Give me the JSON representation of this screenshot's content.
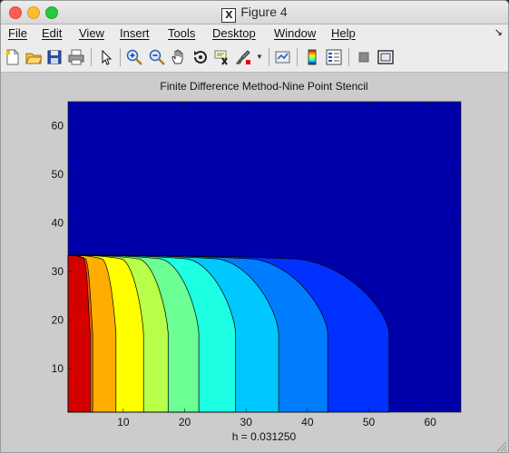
{
  "window": {
    "title": "Figure 4",
    "title_icon": "X"
  },
  "menu": {
    "items": [
      "File",
      "Edit",
      "View",
      "Insert",
      "Tools",
      "Desktop",
      "Window",
      "Help"
    ],
    "overflow_icon": "arrow-icon"
  },
  "toolbar": {
    "buttons": [
      "new-figure-icon",
      "open-file-icon",
      "save-icon",
      "print-icon",
      "edit-plot-icon",
      "zoom-in-icon",
      "zoom-out-icon",
      "pan-icon",
      "rotate-3d-icon",
      "data-cursor-icon",
      "brush-icon",
      "link-icon",
      "colorbar-icon",
      "legend-icon",
      "hide-plot-tools-icon",
      "show-plot-tools-icon"
    ]
  },
  "chart_data": {
    "type": "contour",
    "title": "Finite Difference Method-Nine Point Stencil",
    "xlabel": "h = 0.031250",
    "ylabel": "",
    "xlim": [
      1,
      65
    ],
    "ylim": [
      1,
      65
    ],
    "xticks": [
      "10",
      "20",
      "30",
      "40",
      "50",
      "60"
    ],
    "yticks": [
      "10",
      "20",
      "30",
      "40",
      "50",
      "60"
    ],
    "grid": false,
    "colormap": "jet",
    "colors": [
      "#0000ab",
      "#0031ff",
      "#007dff",
      "#00c8ff",
      "#1cffe3",
      "#6bff94",
      "#b7ff48",
      "#ffff00",
      "#ffad00",
      "#ff5900",
      "#d40000"
    ],
    "levels": [
      {
        "x_edge_at_y1": 65,
        "top": 33.3
      },
      {
        "x_edge_at_y1": 53.3,
        "top": 33.3
      },
      {
        "x_edge_at_y1": 43.3,
        "top": 33.3
      },
      {
        "x_edge_at_y1": 35.3,
        "top": 33.3
      },
      {
        "x_edge_at_y1": 28.3,
        "top": 33.3
      },
      {
        "x_edge_at_y1": 22.3,
        "top": 33.3
      },
      {
        "x_edge_at_y1": 17.3,
        "top": 33.3
      },
      {
        "x_edge_at_y1": 13.3,
        "top": 33.3
      },
      {
        "x_edge_at_y1": 8.8,
        "top": 33.3
      },
      {
        "x_edge_at_y1": 5.0,
        "top": 33.3
      },
      {
        "x_edge_at_y1": 4.6,
        "top": 33.3
      }
    ]
  }
}
